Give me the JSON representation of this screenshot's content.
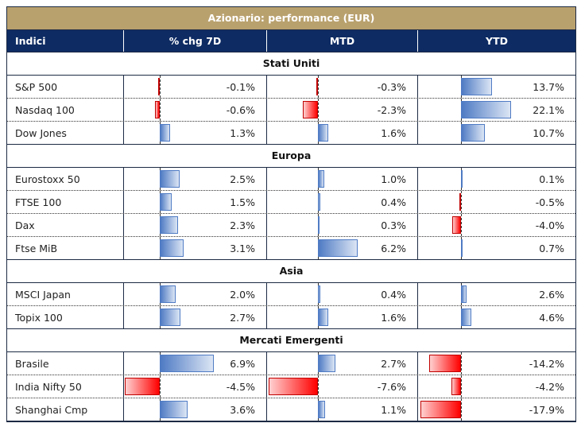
{
  "title": "Azionario: performance (EUR)",
  "columns": [
    "Indici",
    "% chg 7D",
    "MTD",
    "YTD"
  ],
  "colors": {
    "title_bg": "#b9a16e",
    "header_bg": "#0e2b63",
    "positive": "#4f7bc4",
    "negative": "#ff0000"
  },
  "sections": [
    {
      "name": "Stati Uniti",
      "rows": [
        {
          "name": "S&P 500",
          "d7": "-0.1%",
          "mtd": "-0.3%",
          "ytd": "13.7%",
          "v": [
            -0.1,
            -0.3,
            13.7
          ]
        },
        {
          "name": "Nasdaq 100",
          "d7": "-0.6%",
          "mtd": "-2.3%",
          "ytd": "22.1%",
          "v": [
            -0.6,
            -2.3,
            22.1
          ]
        },
        {
          "name": "Dow Jones",
          "d7": "1.3%",
          "mtd": "1.6%",
          "ytd": "10.7%",
          "v": [
            1.3,
            1.6,
            10.7
          ]
        }
      ]
    },
    {
      "name": "Europa",
      "rows": [
        {
          "name": "Eurostoxx 50",
          "d7": "2.5%",
          "mtd": "1.0%",
          "ytd": "0.1%",
          "v": [
            2.5,
            1.0,
            0.1
          ]
        },
        {
          "name": "FTSE 100",
          "d7": "1.5%",
          "mtd": "0.4%",
          "ytd": "-0.5%",
          "v": [
            1.5,
            0.4,
            -0.5
          ]
        },
        {
          "name": "Dax",
          "d7": "2.3%",
          "mtd": "0.3%",
          "ytd": "-4.0%",
          "v": [
            2.3,
            0.3,
            -4.0
          ]
        },
        {
          "name": "Ftse MiB",
          "d7": "3.1%",
          "mtd": "6.2%",
          "ytd": "0.7%",
          "v": [
            3.1,
            6.2,
            0.7
          ]
        }
      ]
    },
    {
      "name": "Asia",
      "rows": [
        {
          "name": "MSCI Japan",
          "d7": "2.0%",
          "mtd": "0.4%",
          "ytd": "2.6%",
          "v": [
            2.0,
            0.4,
            2.6
          ]
        },
        {
          "name": "Topix 100",
          "d7": "2.7%",
          "mtd": "1.6%",
          "ytd": "4.6%",
          "v": [
            2.7,
            1.6,
            4.6
          ]
        }
      ]
    },
    {
      "name": "Mercati Emergenti",
      "rows": [
        {
          "name": "Brasile",
          "d7": "6.9%",
          "mtd": "2.7%",
          "ytd": "-14.2%",
          "v": [
            6.9,
            2.7,
            -14.2
          ]
        },
        {
          "name": "India Nifty 50",
          "d7": "-4.5%",
          "mtd": "-7.6%",
          "ytd": "-4.2%",
          "v": [
            -4.5,
            -7.6,
            -4.2
          ]
        },
        {
          "name": "Shanghai Cmp",
          "d7": "3.6%",
          "mtd": "1.1%",
          "ytd": "-17.9%",
          "v": [
            3.6,
            1.1,
            -17.9
          ]
        }
      ]
    }
  ]
}
